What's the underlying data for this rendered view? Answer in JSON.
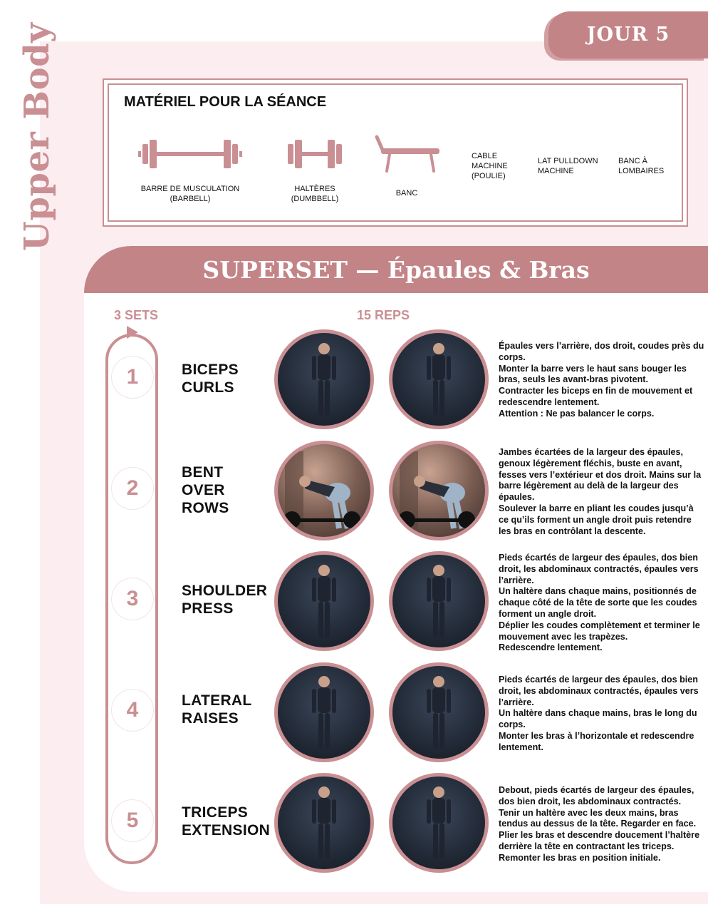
{
  "side_title": "Upper Body",
  "day_badge": "JOUR 5",
  "equipment": {
    "title": "MATÉRIEL POUR LA SÉANCE",
    "items": [
      {
        "label": "BARRE DE MUSCULATION\n(BARBELL)",
        "icon": "barbell-icon"
      },
      {
        "label": "HALTÈRES\n(DUMBBELL)",
        "icon": "dumbbell-icon"
      },
      {
        "label": "BANC",
        "icon": "bench-icon"
      },
      {
        "label": "CABLE\nMACHINE\n(POULIE)"
      },
      {
        "label": "LAT PULLDOWN\nMACHINE"
      },
      {
        "label": "BANC À\nLOMBAIRES"
      }
    ]
  },
  "superset_title": "SUPERSET — Épaules & Bras",
  "sets_label": "3 SETS",
  "reps_label": "15 REPS",
  "colors": {
    "accent": "#c38487",
    "panel": "#fcedf0",
    "text": "#111111"
  },
  "exercises": [
    {
      "number": "1",
      "name": "BICEPS\nCURLS",
      "description": [
        "Épaules vers l’arrière, dos droit, coudes près du corps.",
        "Monter la barre vers le haut sans bouger les bras, seuls les avant-bras pivotent.",
        "Contracter les biceps en fin de mouvement et redescendre lentement.",
        "Attention : Ne pas balancer le corps."
      ]
    },
    {
      "number": "2",
      "name": "BENT\nOVER\nROWS",
      "description": [
        "Jambes écartées de la largeur des épaules, genoux légèrement fléchis, buste en avant, fesses vers l’extérieur et dos droit. Mains sur la barre légèrement au delà de la largeur des épaules.",
        "Soulever la barre en pliant les coudes jusqu’à ce qu’ils forment un angle droit puis retendre les bras en contrôlant la descente."
      ]
    },
    {
      "number": "3",
      "name": "SHOULDER\nPRESS",
      "description": [
        "Pieds écartés de largeur des épaules, dos bien droit, les abdominaux contractés, épaules vers l’arrière.",
        "Un haltère dans chaque mains, positionnés de chaque côté de la tête de sorte que les coudes forment un angle droit.",
        "Déplier les coudes complètement et terminer le mouvement avec les trapèzes.",
        "Redescendre lentement."
      ]
    },
    {
      "number": "4",
      "name": "LATERAL\nRAISES",
      "description": [
        "Pieds écartés de largeur des épaules, dos bien droit, les abdominaux contractés, épaules vers l’arrière.",
        "Un haltère dans chaque mains, bras le long du corps.",
        "Monter les bras à l’horizontale et redescendre lentement."
      ]
    },
    {
      "number": "5",
      "name": "TRICEPS\nEXTENSION",
      "description": [
        "Debout, pieds écartés de largeur des épaules, dos bien droit, les abdominaux contractés.",
        "Tenir un haltère avec les deux mains, bras tendus au dessus de la tête. Regarder en face.",
        "Plier les bras et descendre doucement l’haltère derrière la tête en contractant les triceps.",
        "Remonter les bras en position initiale."
      ]
    }
  ]
}
